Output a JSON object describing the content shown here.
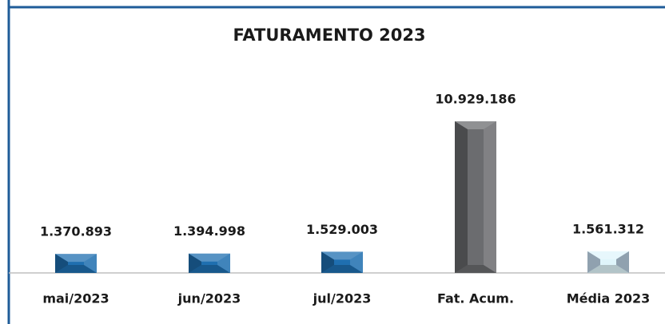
{
  "chart_data": {
    "type": "bar",
    "title": "FATURAMENTO 2023",
    "categories": [
      "mai/2023",
      "jun/2023",
      "jul/2023",
      "Fat. Acum.",
      "Média 2023"
    ],
    "values": [
      1370893,
      1394998,
      1529003,
      10929186,
      1561312
    ],
    "value_labels": [
      "1.370.893",
      "1.394.998",
      "1.529.003",
      "10.929.186",
      "1.561.312"
    ],
    "colors": [
      "#1f6fb0",
      "#1f6fb0",
      "#1f6fb0",
      "#6b6c6f",
      "#dff5fb"
    ]
  }
}
